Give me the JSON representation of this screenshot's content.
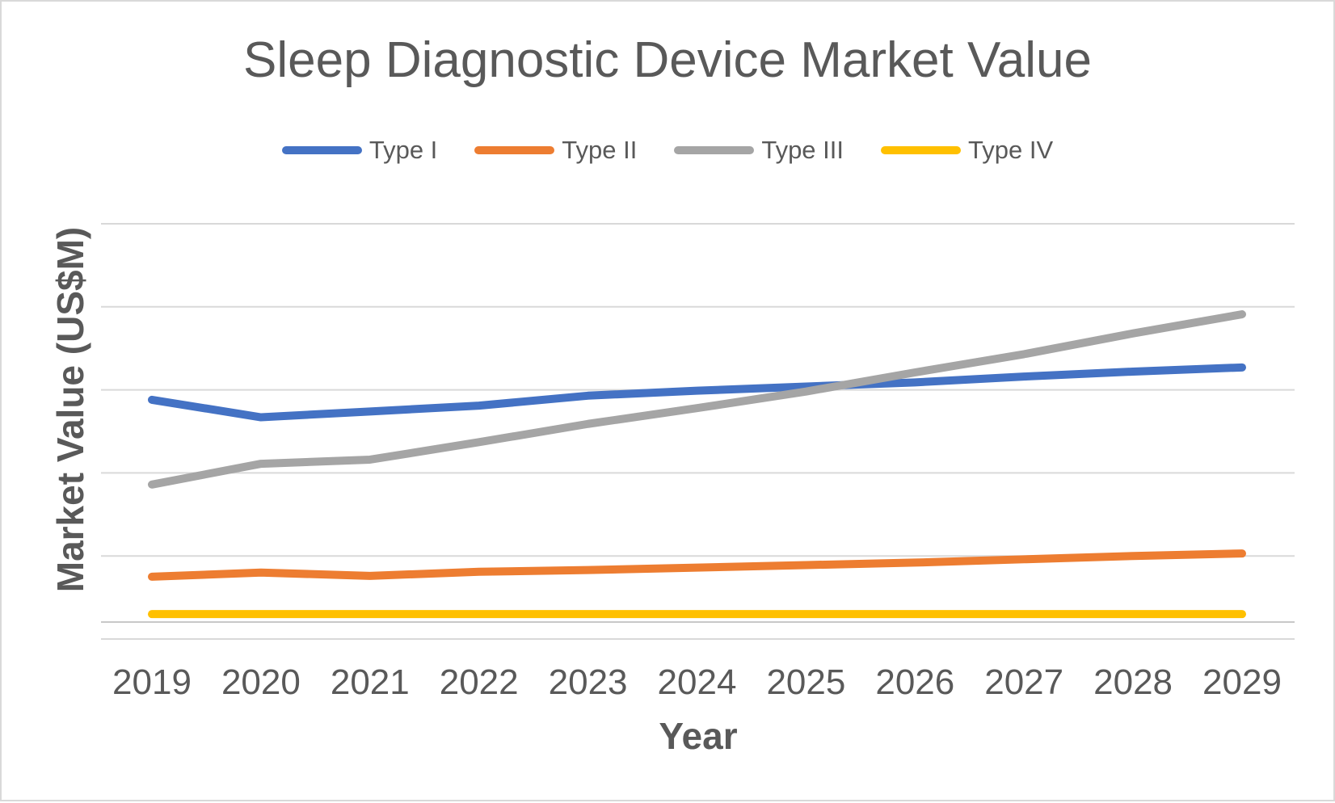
{
  "chart_data": {
    "type": "line",
    "title": "Sleep Diagnostic Device Market Value",
    "xlabel": "Year",
    "ylabel": "Market Value (US$M)",
    "x": [
      "2019",
      "2020",
      "2021",
      "2022",
      "2023",
      "2024",
      "2025",
      "2026",
      "2027",
      "2028",
      "2029"
    ],
    "series": [
      {
        "name": "Type I",
        "color": "#4472C4",
        "values": [
          288,
          267,
          274,
          281,
          293,
          299,
          304,
          309,
          316,
          322,
          327
        ]
      },
      {
        "name": "Type II",
        "color": "#ED7D31",
        "values": [
          75,
          80,
          76,
          81,
          83,
          86,
          89,
          92,
          96,
          100,
          103
        ]
      },
      {
        "name": "Type III",
        "color": "#A5A5A5",
        "values": [
          186,
          211,
          216,
          237,
          259,
          278,
          298,
          321,
          343,
          368,
          391
        ]
      },
      {
        "name": "Type IV",
        "color": "#FFC000",
        "values": [
          30,
          30,
          30,
          30,
          30,
          30,
          30,
          30,
          30,
          30,
          30
        ]
      }
    ],
    "ylim": [
      0,
      500
    ],
    "y_major": 100,
    "y_tick_labels_visible": false,
    "grid": true,
    "legend_position": "top",
    "text_color": "#595959",
    "gridline_color": "#D9D9D9",
    "axis_line_color": "#C8C8C8"
  }
}
